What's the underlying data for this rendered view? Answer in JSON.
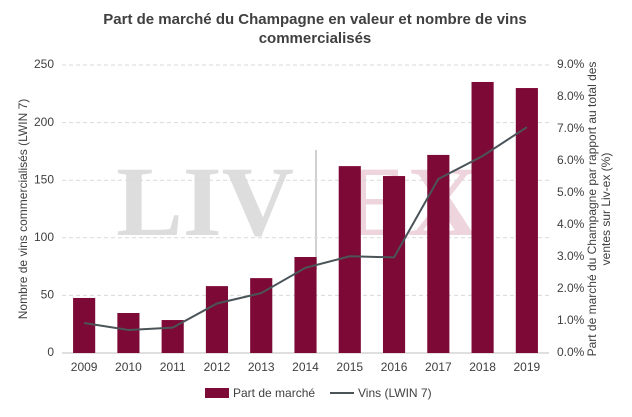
{
  "chart_data": {
    "type": "bar-line",
    "title": "Part de marché du Champagne en valeur et nombre de vins commercialisés",
    "y_label": "Nombre de vins commercialisés (LWIN 7)",
    "y2_label": "Part de marché du Champagne par rapport au total des ventes sur Liv-ex (%)",
    "watermark": [
      "LIV",
      "EX"
    ],
    "categories": [
      "2009",
      "2010",
      "2011",
      "2012",
      "2013",
      "2014",
      "2015",
      "2016",
      "2017",
      "2018",
      "2019"
    ],
    "series": [
      {
        "name": "Part de marché",
        "type": "bar",
        "axis": "y2",
        "color": "#7d0a36",
        "values": [
          1.72,
          1.25,
          1.03,
          2.09,
          2.34,
          3.0,
          5.84,
          5.53,
          6.19,
          8.47,
          8.28
        ]
      },
      {
        "name": "Vins (LWIN 7)",
        "type": "line",
        "axis": "y",
        "color": "#4a5459",
        "values": [
          26,
          20,
          22,
          43,
          52,
          74,
          84,
          83,
          151,
          171,
          196
        ]
      }
    ],
    "ylim": [
      0,
      250
    ],
    "yticks": [
      0,
      50,
      100,
      150,
      200,
      250
    ],
    "y2lim": [
      0,
      9
    ],
    "y2ticks": [
      {
        "value": 0,
        "label": "0.0%"
      },
      {
        "value": 1,
        "label": "1.0%"
      },
      {
        "value": 2,
        "label": "2.0%"
      },
      {
        "value": 3,
        "label": "3.0%"
      },
      {
        "value": 4,
        "label": "4.0%"
      },
      {
        "value": 5,
        "label": "5.0%"
      },
      {
        "value": 6,
        "label": "6.0%"
      },
      {
        "value": 7,
        "label": "7.0%"
      },
      {
        "value": 8,
        "label": "8.0%"
      },
      {
        "value": 9,
        "label": "9.0%"
      }
    ],
    "grid": true,
    "legend": "bottom"
  }
}
